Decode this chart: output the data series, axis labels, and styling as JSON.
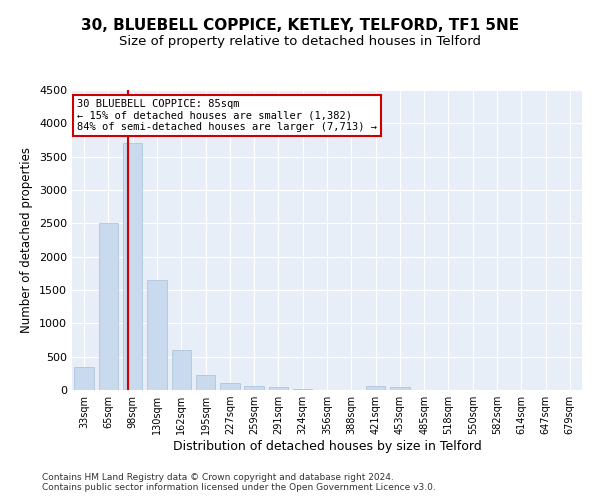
{
  "title": "30, BLUEBELL COPPICE, KETLEY, TELFORD, TF1 5NE",
  "subtitle": "Size of property relative to detached houses in Telford",
  "xlabel": "Distribution of detached houses by size in Telford",
  "ylabel": "Number of detached properties",
  "categories": [
    "33sqm",
    "65sqm",
    "98sqm",
    "130sqm",
    "162sqm",
    "195sqm",
    "227sqm",
    "259sqm",
    "291sqm",
    "324sqm",
    "356sqm",
    "388sqm",
    "421sqm",
    "453sqm",
    "485sqm",
    "518sqm",
    "550sqm",
    "582sqm",
    "614sqm",
    "647sqm",
    "679sqm"
  ],
  "values": [
    350,
    2500,
    3700,
    1650,
    600,
    220,
    100,
    60,
    40,
    18,
    5,
    5,
    60,
    40,
    0,
    0,
    0,
    0,
    0,
    0,
    0
  ],
  "bar_color": "#c9d9ee",
  "bar_edge_color": "#a8c0d8",
  "red_line_x": 1.82,
  "annotation_text": "30 BLUEBELL COPPICE: 85sqm\n← 15% of detached houses are smaller (1,382)\n84% of semi-detached houses are larger (7,713) →",
  "annotation_box_color": "#ffffff",
  "annotation_box_edge": "#cc0000",
  "ylim": [
    0,
    4500
  ],
  "yticks": [
    0,
    500,
    1000,
    1500,
    2000,
    2500,
    3000,
    3500,
    4000,
    4500
  ],
  "footer": "Contains HM Land Registry data © Crown copyright and database right 2024.\nContains public sector information licensed under the Open Government Licence v3.0.",
  "bg_color": "#e8eef8",
  "title_fontsize": 11,
  "subtitle_fontsize": 9.5,
  "xlabel_fontsize": 9,
  "ylabel_fontsize": 8.5
}
